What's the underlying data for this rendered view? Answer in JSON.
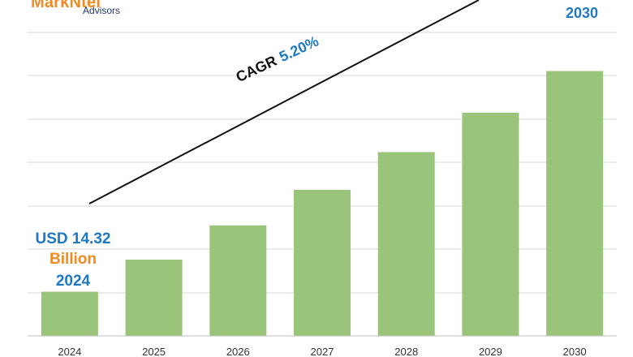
{
  "logo": {
    "brand": "MarkNtel",
    "sub": "Advisors"
  },
  "annotations": {
    "start_value": "USD 14.32",
    "start_unit": "Billion",
    "start_year": "2024",
    "end_year": "2030",
    "cagr_label": "CAGR",
    "cagr_value": "5.20%"
  },
  "colors": {
    "bar": "#9bc47b",
    "grid": "#d9d9d9",
    "accent_blue": "#1f78c4",
    "accent_orange": "#f08a24"
  },
  "chart_data": {
    "type": "bar",
    "categories": [
      "2024",
      "2025",
      "2026",
      "2027",
      "2028",
      "2029",
      "2030"
    ],
    "values": [
      14.32,
      15.06,
      15.85,
      16.67,
      17.54,
      18.45,
      19.41
    ],
    "ylim": [
      13.3,
      20.3
    ],
    "grid": true,
    "title": "",
    "xlabel": "",
    "ylabel": ""
  }
}
